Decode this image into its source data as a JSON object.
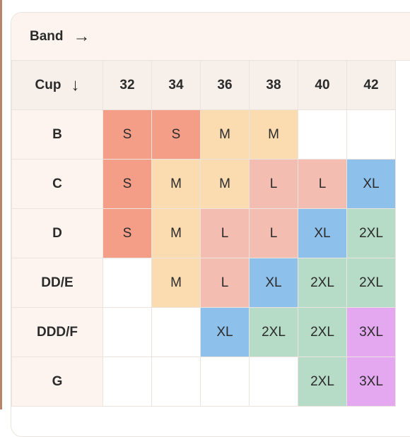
{
  "band_label": "Band",
  "band_arrow_icon": "arrow-right-icon",
  "cup_label": "Cup",
  "cup_arrow_icon": "arrow-down-icon",
  "band_sizes": [
    "32",
    "34",
    "36",
    "38",
    "40",
    "42"
  ],
  "colors": {
    "S": "#f49e88",
    "M": "#fbdcb1",
    "L": "#f4bdb2",
    "XL": "#8ec0ec",
    "2XL": "#b6dcc7",
    "3XL": "#e4a8f0"
  },
  "rows": [
    {
      "cup": "B",
      "sizes": [
        "S",
        "S",
        "M",
        "M",
        "",
        ""
      ]
    },
    {
      "cup": "C",
      "sizes": [
        "S",
        "M",
        "M",
        "L",
        "L",
        "XL"
      ]
    },
    {
      "cup": "D",
      "sizes": [
        "S",
        "M",
        "L",
        "L",
        "XL",
        "2XL"
      ]
    },
    {
      "cup": "DD/E",
      "sizes": [
        "",
        "M",
        "L",
        "XL",
        "2XL",
        "2XL"
      ]
    },
    {
      "cup": "DDD/F",
      "sizes": [
        "",
        "",
        "XL",
        "2XL",
        "2XL",
        "3XL"
      ]
    },
    {
      "cup": "G",
      "sizes": [
        "",
        "",
        "",
        "",
        "2XL",
        "3XL"
      ]
    }
  ]
}
